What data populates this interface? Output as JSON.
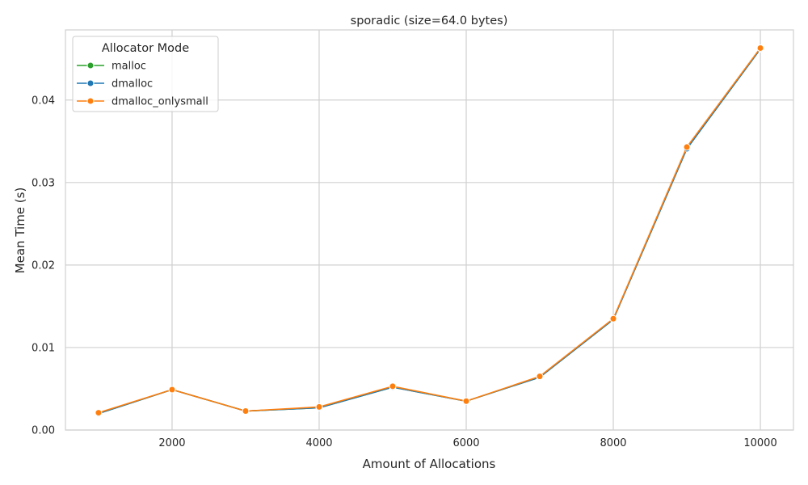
{
  "chart_data": {
    "type": "line",
    "title": "sporadic (size=64.0 bytes)",
    "xlabel": "Amount of Allocations",
    "ylabel": "Mean Time (s)",
    "xlim": [
      550,
      10450
    ],
    "ylim": [
      0,
      0.0485
    ],
    "xticks": [
      2000,
      4000,
      6000,
      8000,
      10000
    ],
    "xtick_labels": [
      "2000",
      "4000",
      "6000",
      "8000",
      "10000"
    ],
    "yticks": [
      0,
      0.01,
      0.02,
      0.03,
      0.04
    ],
    "ytick_labels": [
      "0.00",
      "0.01",
      "0.02",
      "0.03",
      "0.04"
    ],
    "grid": true,
    "legend": {
      "title": "Allocator Mode",
      "position": "top-left"
    },
    "x": [
      1000,
      2000,
      3000,
      4000,
      5000,
      6000,
      7000,
      8000,
      9000,
      10000
    ],
    "series": [
      {
        "name": "malloc",
        "color": "#2ca02c",
        "values": [
          0.002,
          0.0049,
          0.0023,
          0.0027,
          0.0052,
          0.0035,
          0.0064,
          0.0134,
          0.0341,
          0.0462
        ]
      },
      {
        "name": "dmalloc",
        "color": "#1f77b4",
        "values": [
          0.002,
          0.0049,
          0.0023,
          0.0027,
          0.0052,
          0.0035,
          0.0064,
          0.0134,
          0.0341,
          0.0462
        ]
      },
      {
        "name": "dmalloc_onlysmall",
        "color": "#ff7f0e",
        "values": [
          0.0021,
          0.0049,
          0.0023,
          0.0028,
          0.0053,
          0.0035,
          0.0065,
          0.0135,
          0.0343,
          0.0463
        ]
      }
    ]
  }
}
